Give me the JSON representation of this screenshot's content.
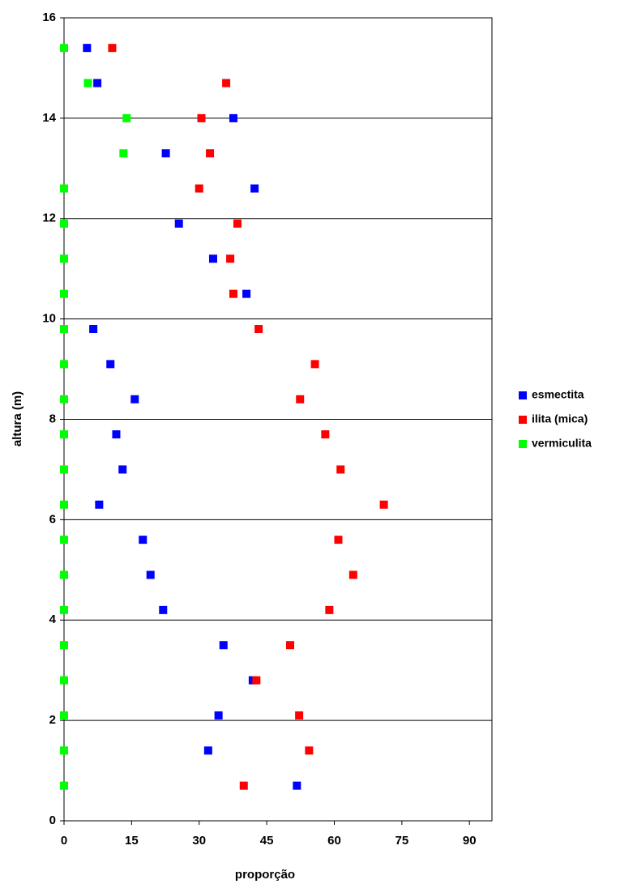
{
  "chart_data": {
    "type": "scatter",
    "x_label": "proporção",
    "y_label": "altura (m)",
    "xlim": [
      0,
      95
    ],
    "xticks": [
      0,
      15,
      30,
      45,
      60,
      75,
      90
    ],
    "ylim": [
      0,
      16
    ],
    "yticks": [
      0,
      2,
      4,
      6,
      8,
      10,
      12,
      14,
      16
    ],
    "grid": true,
    "legend": "right",
    "series": [
      {
        "name": "esmectita",
        "color": "#0000ff",
        "x": [
          51.7,
          32,
          34.3,
          41.9,
          35.4,
          22,
          19.2,
          17.5,
          7.8,
          13,
          11.6,
          15.7,
          10.3,
          6.5,
          40.5,
          33.1,
          25.5,
          42.3,
          22.6,
          37.6,
          7.4,
          5.1
        ],
        "values": [
          0.7,
          1.4,
          2.1,
          2.8,
          3.5,
          4.2,
          4.9,
          5.6,
          6.3,
          7.0,
          7.7,
          8.4,
          9.1,
          9.8,
          10.5,
          11.2,
          11.9,
          12.6,
          13.3,
          14.0,
          14.7,
          15.4
        ]
      },
      {
        "name": "ilita (mica)",
        "color": "#ff0000",
        "x": [
          39.9,
          54.4,
          52.2,
          42.7,
          50.2,
          58.9,
          64.2,
          60.9,
          71,
          61.4,
          58,
          52.4,
          55.7,
          43.2,
          37.6,
          36.9,
          38.5,
          30,
          32.4,
          30.5,
          36,
          10.7
        ],
        "values": [
          0.7,
          1.4,
          2.1,
          2.8,
          3.5,
          4.2,
          4.9,
          5.6,
          6.3,
          7.0,
          7.7,
          8.4,
          9.1,
          9.8,
          10.5,
          11.2,
          11.9,
          12.6,
          13.3,
          14.0,
          14.7,
          15.4
        ]
      },
      {
        "name": "vermiculita",
        "color": "#00ff00",
        "x": [
          0,
          0,
          0,
          0,
          0,
          0,
          0,
          0,
          0,
          0,
          0,
          0,
          0,
          0,
          0,
          0,
          0,
          0,
          13.2,
          13.9,
          5.3,
          0
        ],
        "values": [
          0.7,
          1.4,
          2.1,
          2.8,
          3.5,
          4.2,
          4.9,
          5.6,
          6.3,
          7.0,
          7.7,
          8.4,
          9.1,
          9.8,
          10.5,
          11.2,
          11.9,
          12.6,
          13.3,
          14.0,
          14.7,
          15.4
        ]
      }
    ]
  }
}
